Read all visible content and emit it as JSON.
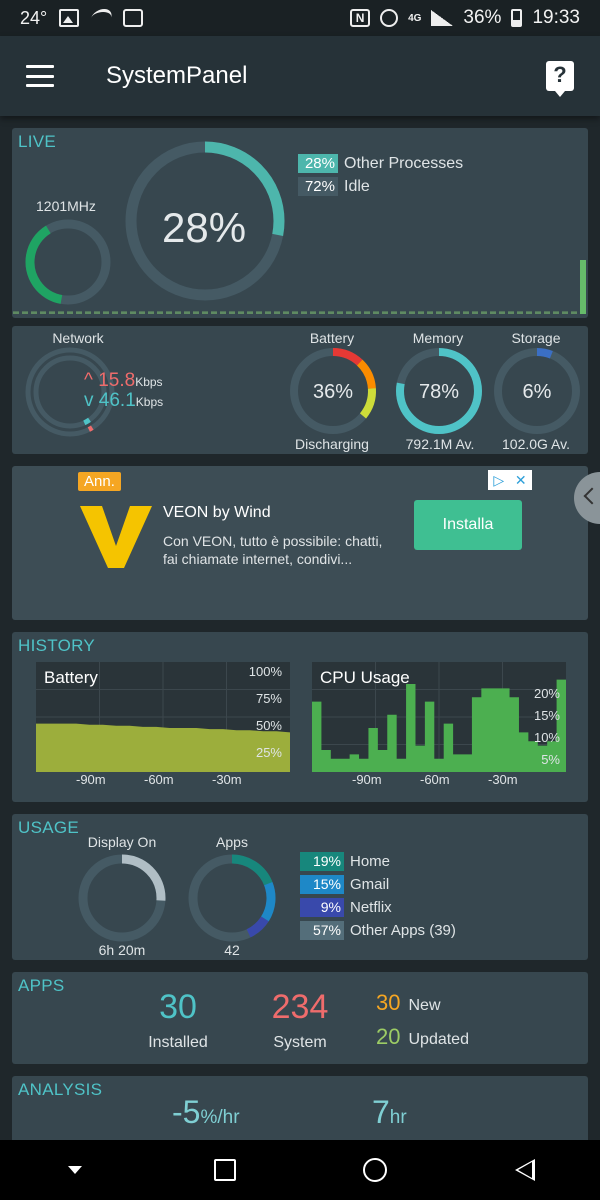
{
  "status": {
    "temperature": "24°",
    "battery_pct": "36%",
    "time": "19:33",
    "network_type": "4G",
    "icons": [
      "image-icon",
      "swoosh-icon",
      "map-icon",
      "nfc-icon",
      "alarm-icon",
      "signal-icon",
      "battery-icon"
    ]
  },
  "app_bar": {
    "title": "SystemPanel",
    "menu_icon": "hamburger-menu-icon",
    "help_icon": "help-icon"
  },
  "live": {
    "title": "LIVE",
    "cpu_freq": "1201MHz",
    "cpu_freq_level": 0.7,
    "cpu_pct_label": "28%",
    "cpu_pct": 28,
    "legend": [
      {
        "pct": "28%",
        "label": "Other Processes",
        "color": "#4db6ac"
      },
      {
        "pct": "72%",
        "label": "Idle",
        "color": "#455a64"
      }
    ],
    "history_bars": [
      0.2,
      0.2,
      0.2,
      0.2,
      0.2,
      0.2,
      0.2,
      0.2,
      0.2,
      0.2,
      0.2,
      0.2,
      0.2,
      0.2,
      0.2,
      0.2,
      0.2,
      0.2,
      0.2,
      0.2,
      0.2,
      0.2,
      0.2,
      0.2,
      0.2,
      0.2,
      0.2,
      0.2,
      0.2,
      0.2,
      0.2,
      0.2,
      0.2,
      0.2,
      0.2,
      0.2,
      0.2,
      0.2,
      0.2,
      0.2,
      0.2,
      0.2,
      0.2,
      0.2,
      0.2,
      0.2,
      0.2,
      0.2,
      0.2,
      0.2,
      0.2,
      0.2,
      0.2,
      0.2,
      0.2,
      0.2,
      0.2,
      0.2,
      0.2,
      0.2,
      0.2,
      0.2,
      0.2,
      1.0
    ]
  },
  "resources": {
    "network": {
      "label": "Network",
      "up": "15.8",
      "down": "46.1",
      "unit": "Kbps",
      "up_color": "#ef6c6c",
      "down_color": "#4fc3c7"
    },
    "battery": {
      "label": "Battery",
      "value": "36%",
      "sub": "Discharging",
      "level": 0.36
    },
    "memory": {
      "label": "Memory",
      "value": "78%",
      "sub": "792.1M Av.",
      "level": 0.78,
      "color": "#4fc3c7"
    },
    "storage": {
      "label": "Storage",
      "value": "6%",
      "sub": "102.0G Av.",
      "level": 0.06,
      "color": "#3b6fc4"
    }
  },
  "ad": {
    "badge": "Ann.",
    "title": "VEON by Wind",
    "description": "Con VEON, tutto è possibile: chatti, fai chiamate internet, condivi...",
    "button": "Installa",
    "logo_color": "#f5c400",
    "close_icon": "close-icon",
    "adchoices_icon": "adchoices-icon"
  },
  "history": {
    "title": "HISTORY",
    "battery_chart": {
      "title": "Battery",
      "yticks": [
        "100%",
        "75%",
        "50%",
        "25%"
      ],
      "xticks": [
        "-90m",
        "-60m",
        "-30m"
      ],
      "values": [
        44,
        44,
        44,
        44,
        43,
        43,
        42,
        42,
        41,
        41,
        40,
        40,
        40,
        39,
        39,
        38,
        38,
        37,
        37,
        36
      ],
      "color": "#9cae3c"
    },
    "cpu_chart": {
      "title": "CPU Usage",
      "yticks": [
        "20%",
        "15%",
        "10%",
        "5%"
      ],
      "xticks": [
        "-90m",
        "-60m",
        "-30m"
      ],
      "values": [
        16,
        5,
        3,
        3,
        4,
        3,
        10,
        5,
        13,
        3,
        20,
        6,
        16,
        3,
        11,
        4,
        4,
        17,
        19,
        19,
        19,
        17,
        9,
        7,
        6,
        7,
        21
      ],
      "color": "#4caf50"
    }
  },
  "usage": {
    "title": "USAGE",
    "display": {
      "label": "Display On",
      "value": "6h 20m",
      "level": 0.26
    },
    "apps": {
      "label": "Apps",
      "value": "42"
    },
    "legend": [
      {
        "pct": "19%",
        "label": "Home",
        "color": "#17877c",
        "share": 0.19
      },
      {
        "pct": "15%",
        "label": "Gmail",
        "color": "#1e88c7",
        "share": 0.15
      },
      {
        "pct": "9%",
        "label": "Netflix",
        "color": "#3949ab",
        "share": 0.09
      },
      {
        "pct": "57%",
        "label": "Other Apps (39)",
        "color": "#546e7a",
        "share": 0.57
      }
    ]
  },
  "apps": {
    "title": "APPS",
    "installed": {
      "value": "30",
      "label": "Installed",
      "color": "#4fc3c7"
    },
    "system": {
      "value": "234",
      "label": "System",
      "color": "#ef6c6c"
    },
    "new": {
      "value": "30",
      "label": "New",
      "color": "#f5a623"
    },
    "updated": {
      "value": "20",
      "label": "Updated",
      "color": "#9ccc65"
    }
  },
  "analysis": {
    "title": "ANALYSIS",
    "rate": {
      "value": "-5",
      "unit": "%/hr"
    },
    "remaining": {
      "value": "7",
      "unit": "hr"
    }
  },
  "nav": {
    "icons": [
      "nav-down-icon",
      "recents-icon",
      "home-icon",
      "back-icon"
    ]
  }
}
